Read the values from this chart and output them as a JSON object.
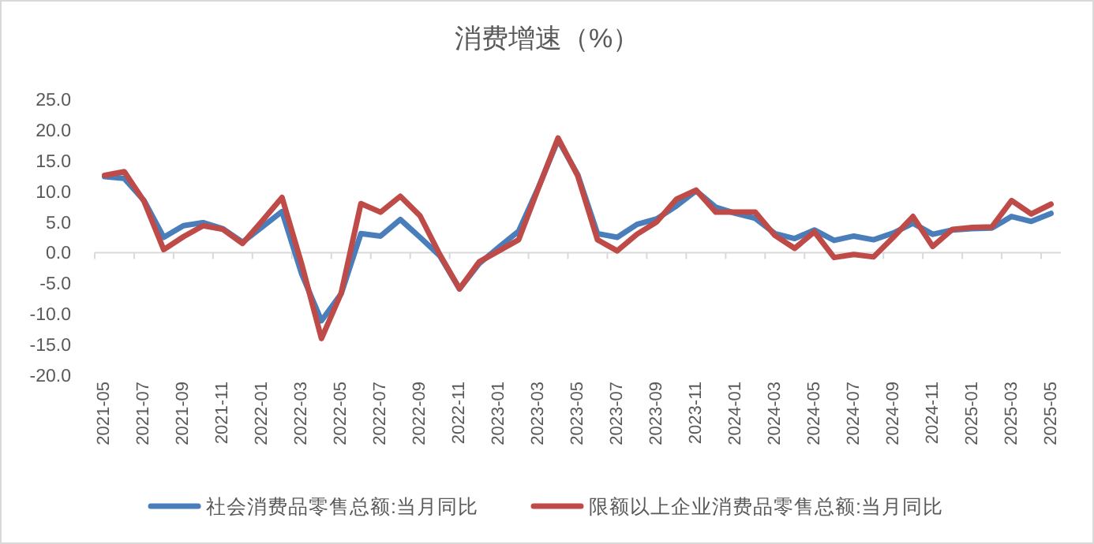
{
  "chart_data": {
    "type": "line",
    "title": "消费增速（%）",
    "categories": [
      "2021-05",
      null,
      "2021-07",
      null,
      "2021-09",
      null,
      "2021-11",
      null,
      "2022-01",
      null,
      "2022-03",
      null,
      "2022-05",
      null,
      "2022-07",
      null,
      "2022-09",
      null,
      "2022-11",
      null,
      "2023-01",
      null,
      "2023-03",
      null,
      "2023-05",
      null,
      "2023-07",
      null,
      "2023-09",
      null,
      "2023-11",
      null,
      "2024-01",
      null,
      "2024-03",
      null,
      "2024-05",
      null,
      "2024-07",
      null,
      "2024-09",
      null,
      "2024-11",
      null,
      "2025-01",
      null,
      "2025-03",
      null,
      "2025-05"
    ],
    "series": [
      {
        "name": "社会消费品零售总额:当月同比",
        "color": "#4a7ebb",
        "values": [
          12.4,
          12.1,
          8.5,
          2.5,
          4.4,
          4.9,
          3.9,
          1.7,
          4.2,
          6.7,
          -3.5,
          -11.1,
          -6.7,
          3.1,
          2.7,
          5.4,
          2.5,
          -0.5,
          -5.9,
          -1.8,
          0.9,
          3.5,
          10.6,
          18.4,
          12.7,
          3.1,
          2.5,
          4.6,
          5.5,
          7.6,
          10.1,
          7.4,
          6.4,
          5.6,
          3.1,
          2.3,
          3.7,
          2.0,
          2.7,
          2.1,
          3.2,
          4.8,
          3.0,
          3.7,
          3.9,
          4.0,
          5.9,
          5.1,
          6.4
        ]
      },
      {
        "name": "限额以上企业消费品零售总额:当月同比",
        "color": "#be4b48",
        "values": [
          12.6,
          13.2,
          8.4,
          0.5,
          2.6,
          4.4,
          3.8,
          1.5,
          5.2,
          9.0,
          -1.9,
          -14.0,
          -6.6,
          8.0,
          6.6,
          9.2,
          6.0,
          -0.3,
          -5.9,
          -1.5,
          0.3,
          2.1,
          10.5,
          18.7,
          12.5,
          2.1,
          0.3,
          3.0,
          5.0,
          8.7,
          10.2,
          6.6,
          6.6,
          6.6,
          2.8,
          0.7,
          3.4,
          -0.8,
          -0.3,
          -0.7,
          2.5,
          5.9,
          1.0,
          3.8,
          4.1,
          4.2,
          8.5,
          6.3,
          7.9
        ]
      }
    ],
    "ylim": [
      -20,
      25
    ],
    "yticks": [
      {
        "value": 25,
        "label": "25.0"
      },
      {
        "value": 20,
        "label": "20.0"
      },
      {
        "value": 15,
        "label": "15.0"
      },
      {
        "value": 10,
        "label": "10.0"
      },
      {
        "value": 5,
        "label": "5.0"
      },
      {
        "value": 0,
        "label": "0.0"
      },
      {
        "value": -5,
        "label": "-5.0"
      },
      {
        "value": -10,
        "label": "-10.0"
      },
      {
        "value": -15,
        "label": "-15.0"
      },
      {
        "value": -20,
        "label": "-20.0"
      }
    ],
    "legend": "bottom",
    "marker": "none",
    "line_style": "solid"
  }
}
